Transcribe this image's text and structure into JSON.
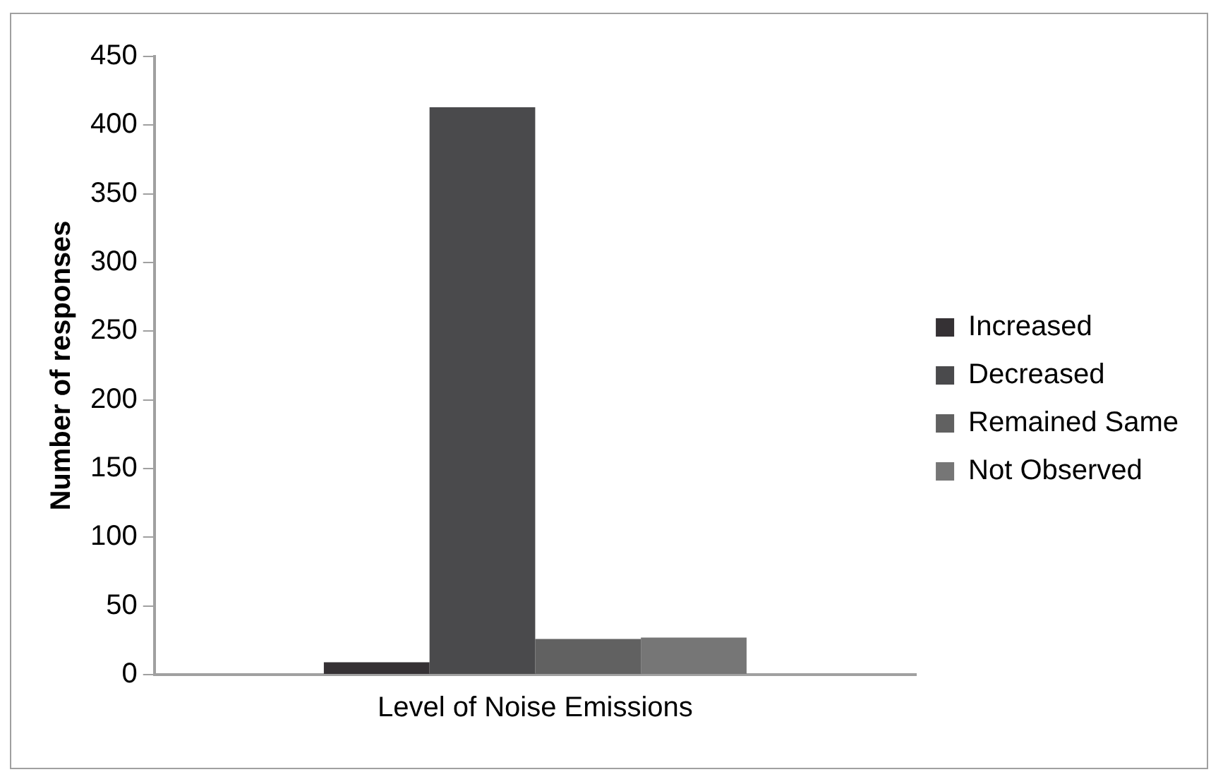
{
  "chart_data": {
    "type": "bar",
    "ylabel": "Number of responses",
    "categories": [
      "Level of Noise Emissions"
    ],
    "series": [
      {
        "name": "Increased",
        "color": "#353134",
        "values": [
          9
        ]
      },
      {
        "name": "Decreased",
        "color": "#4a4a4c",
        "values": [
          413
        ]
      },
      {
        "name": "Remained Same",
        "color": "#616161",
        "values": [
          26
        ]
      },
      {
        "name": "Not Observed",
        "color": "#767676",
        "values": [
          27
        ]
      }
    ],
    "ylim": [
      0,
      450
    ],
    "yticks": [
      0,
      50,
      100,
      150,
      200,
      250,
      300,
      350,
      400,
      450
    ],
    "grid": false,
    "legend": "right"
  }
}
